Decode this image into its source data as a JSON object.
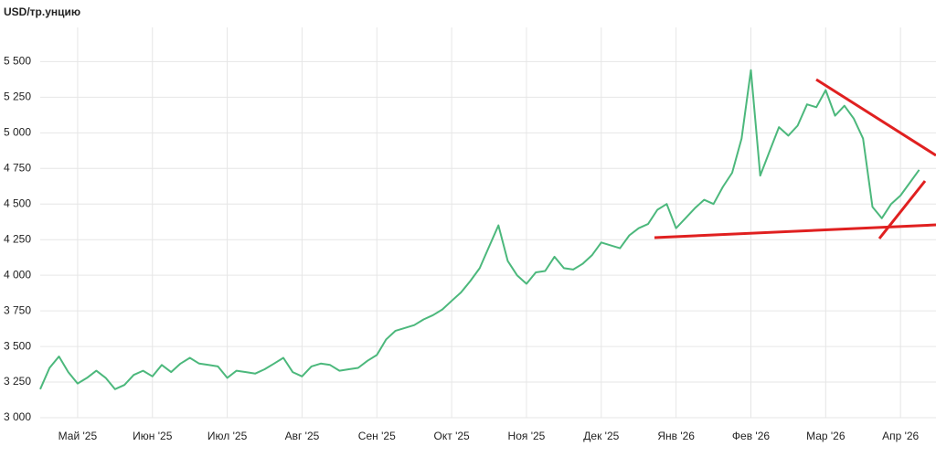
{
  "chart_data": {
    "type": "line",
    "y_label": "USD/тр.унцию",
    "categories": [
      null,
      null,
      null,
      null,
      "Май '25",
      null,
      null,
      null,
      null,
      null,
      null,
      null,
      "Июн '25",
      null,
      null,
      null,
      null,
      null,
      null,
      null,
      "Июл '25",
      null,
      null,
      null,
      null,
      null,
      null,
      null,
      "Авг '25",
      null,
      null,
      null,
      null,
      null,
      null,
      null,
      "Сен '25",
      null,
      null,
      null,
      null,
      null,
      null,
      null,
      "Окт '25",
      null,
      null,
      null,
      null,
      null,
      null,
      null,
      "Ноя '25",
      null,
      null,
      null,
      null,
      null,
      null,
      null,
      "Дек '25",
      null,
      null,
      null,
      null,
      null,
      null,
      null,
      "Янв '26",
      null,
      null,
      null,
      null,
      null,
      null,
      null,
      "Фев '26",
      null,
      null,
      null,
      null,
      null,
      null,
      null,
      "Мар '26",
      null,
      null,
      null,
      null,
      null,
      null,
      null,
      "Апр '26",
      null,
      null
    ],
    "series": [
      {
        "color": "#4cb87c",
        "values": [
          3200,
          3350,
          3430,
          3320,
          3240,
          3280,
          3330,
          3280,
          3200,
          3230,
          3300,
          3330,
          3290,
          3370,
          3320,
          3380,
          3420,
          3380,
          3370,
          3360,
          3280,
          3330,
          3320,
          3310,
          3340,
          3380,
          3420,
          3320,
          3290,
          3360,
          3380,
          3370,
          3330,
          3340,
          3350,
          3400,
          3440,
          3550,
          3610,
          3630,
          3650,
          3690,
          3720,
          3760,
          3820,
          3880,
          3960,
          4050,
          4200,
          4350,
          4100,
          4000,
          3940,
          4020,
          4030,
          4130,
          4050,
          4040,
          4080,
          4140,
          4230,
          4210,
          4190,
          4280,
          4330,
          4360,
          4460,
          4500,
          4330,
          4400,
          4470,
          4530,
          4500,
          4620,
          4720,
          4960,
          5440,
          4700,
          4870,
          5040,
          4980,
          5050,
          5200,
          5180,
          5300,
          5120,
          5190,
          5100,
          4960,
          4480,
          4400,
          4500,
          4560,
          4650,
          4740
        ]
      }
    ],
    "ylim": [
      3000,
      5740
    ],
    "yticks": [
      {
        "value": 3000,
        "label": "3 000"
      },
      {
        "value": 3250,
        "label": "3 250"
      },
      {
        "value": 3500,
        "label": "3 500"
      },
      {
        "value": 3750,
        "label": "3 750"
      },
      {
        "value": 4000,
        "label": "4 000"
      },
      {
        "value": 4250,
        "label": "4 250"
      },
      {
        "value": 4500,
        "label": "4 500"
      },
      {
        "value": 4750,
        "label": "4 750"
      },
      {
        "value": 5000,
        "label": "5 000"
      },
      {
        "value": 5250,
        "label": "5 250"
      },
      {
        "value": 5500,
        "label": "5 500"
      }
    ],
    "grid": true
  }
}
